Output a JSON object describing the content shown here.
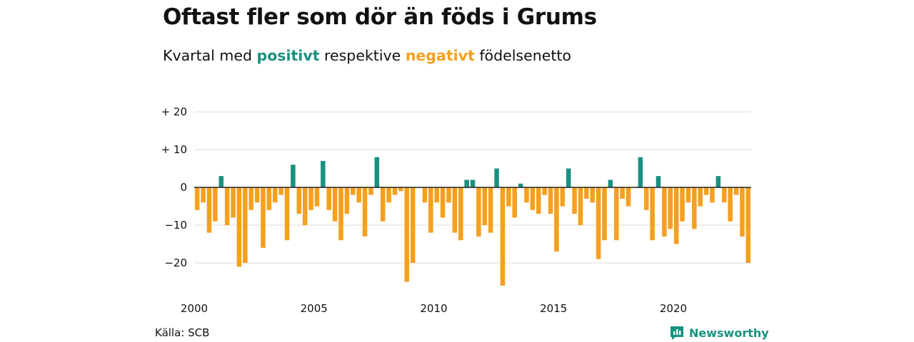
{
  "header": {
    "title": "Oftast fler som dör än föds i Grums",
    "subtitle_before": "Kvartal med",
    "subtitle_positive": "positivt",
    "subtitle_middle": "respektive",
    "subtitle_negative": "negativt",
    "subtitle_after": "födelsenetto"
  },
  "footer": {
    "source": "Källa: SCB",
    "brand": "Newsworthy",
    "brand_icon": "bar-chart-logo-icon"
  },
  "colors": {
    "positive": "#1a9180",
    "negative": "#f5a01e",
    "grid": "#d9d9d9",
    "zero_line": "#222222"
  },
  "chart_data": {
    "type": "bar",
    "title": "Oftast fler som dör än föds i Grums",
    "subtitle": "Kvartal med positivt respektive negativt födelsenetto",
    "x_start": 2000,
    "x_end": 2023.75,
    "quarters_start": "2000 Q1",
    "values": [
      -6,
      -4,
      -12,
      -9,
      3,
      -10,
      -8,
      -21,
      -20,
      -6,
      -4,
      -16,
      -6,
      -4,
      -2,
      -14,
      6,
      -7,
      -10,
      -6,
      -5,
      7,
      -6,
      -9,
      -14,
      -7,
      -2,
      -4,
      -13,
      -2,
      8,
      -9,
      -4,
      -2,
      -1,
      -25,
      -20,
      0,
      -4,
      -12,
      -4,
      -8,
      -4,
      -12,
      -14,
      2,
      2,
      -13,
      -10,
      -12,
      5,
      -26,
      -5,
      -8,
      1,
      -4,
      -6,
      -7,
      -2,
      -7,
      -17,
      -5,
      5,
      -7,
      -10,
      -3,
      -4,
      -19,
      -14,
      2,
      -14,
      -3,
      -5,
      0,
      8,
      -6,
      -14,
      3,
      -13,
      -11,
      -15,
      -9,
      -4,
      -11,
      -5,
      -2,
      -4,
      3,
      -4,
      -9,
      -2,
      -13,
      -20
    ],
    "y_ticks": [
      20,
      10,
      0,
      -10,
      -20
    ],
    "y_tick_labels": [
      "+ 20",
      "+ 10",
      "0",
      "−10",
      "−20"
    ],
    "x_ticks": [
      2000,
      2005,
      2010,
      2015,
      2020
    ],
    "x_tick_labels": [
      "2000",
      "2005",
      "2010",
      "2015",
      "2020"
    ],
    "ylim": [
      -26,
      20
    ],
    "grid": true,
    "legend": "none"
  }
}
